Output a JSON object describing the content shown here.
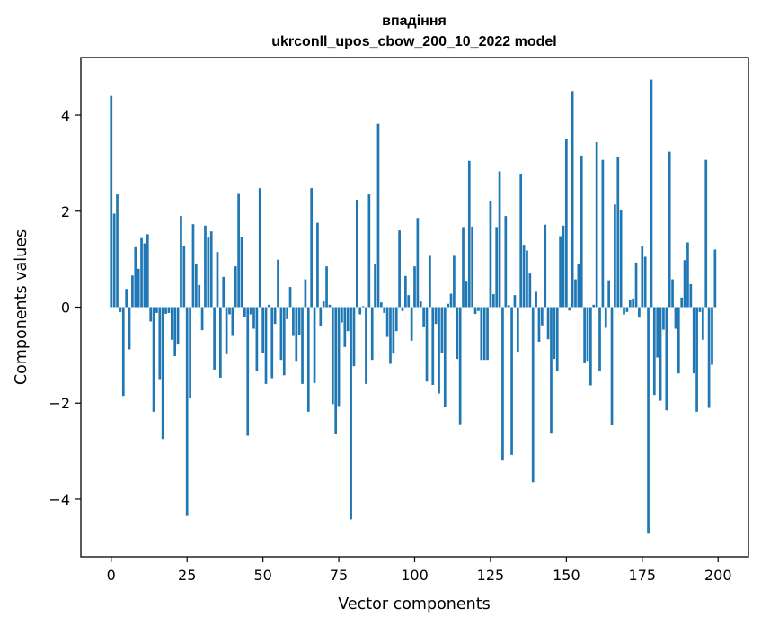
{
  "chart_data": {
    "type": "bar",
    "title": "впадіння",
    "subtitle": "ukrconll_upos_cbow_200_10_2022 model",
    "xlabel": "Vector components",
    "ylabel": "Components values",
    "xlim": [
      -10,
      210
    ],
    "ylim": [
      -5.2,
      5.2
    ],
    "xticks": [
      0,
      25,
      50,
      75,
      100,
      125,
      150,
      175,
      200
    ],
    "xtick_labels": [
      "0",
      "25",
      "50",
      "75",
      "100",
      "125",
      "150",
      "175",
      "200"
    ],
    "yticks": [
      -4,
      -2,
      0,
      2,
      4
    ],
    "ytick_labels": [
      "−4",
      "−2",
      "0",
      "2",
      "4"
    ],
    "grid": false,
    "color": "#1f77b4",
    "x": [
      0,
      1,
      2,
      3,
      4,
      5,
      6,
      7,
      8,
      9,
      10,
      11,
      12,
      13,
      14,
      15,
      16,
      17,
      18,
      19,
      20,
      21,
      22,
      23,
      24,
      25,
      26,
      27,
      28,
      29,
      30,
      31,
      32,
      33,
      34,
      35,
      36,
      37,
      38,
      39,
      40,
      41,
      42,
      43,
      44,
      45,
      46,
      47,
      48,
      49,
      50,
      51,
      52,
      53,
      54,
      55,
      56,
      57,
      58,
      59,
      60,
      61,
      62,
      63,
      64,
      65,
      66,
      67,
      68,
      69,
      70,
      71,
      72,
      73,
      74,
      75,
      76,
      77,
      78,
      79,
      80,
      81,
      82,
      83,
      84,
      85,
      86,
      87,
      88,
      89,
      90,
      91,
      92,
      93,
      94,
      95,
      96,
      97,
      98,
      99,
      100,
      101,
      102,
      103,
      104,
      105,
      106,
      107,
      108,
      109,
      110,
      111,
      112,
      113,
      114,
      115,
      116,
      117,
      118,
      119,
      120,
      121,
      122,
      123,
      124,
      125,
      126,
      127,
      128,
      129,
      130,
      131,
      132,
      133,
      134,
      135,
      136,
      137,
      138,
      139,
      140,
      141,
      142,
      143,
      144,
      145,
      146,
      147,
      148,
      149,
      150,
      151,
      152,
      153,
      154,
      155,
      156,
      157,
      158,
      159,
      160,
      161,
      162,
      163,
      164,
      165,
      166,
      167,
      168,
      169,
      170,
      171,
      172,
      173,
      174,
      175,
      176,
      177,
      178,
      179,
      180,
      181,
      182,
      183,
      184,
      185,
      186,
      187,
      188,
      189,
      190,
      191,
      192,
      193,
      194,
      195,
      196,
      197,
      198,
      199
    ],
    "values": [
      4.4,
      1.95,
      2.35,
      -0.1,
      -1.85,
      0.38,
      -0.88,
      0.66,
      1.25,
      0.8,
      1.44,
      1.33,
      1.52,
      -0.3,
      -2.18,
      -0.12,
      -1.5,
      -2.75,
      -0.14,
      -0.12,
      -0.68,
      -1.02,
      -0.78,
      1.9,
      1.27,
      -4.35,
      -1.9,
      1.73,
      0.9,
      0.46,
      -0.48,
      1.7,
      1.45,
      1.58,
      -1.3,
      1.15,
      -1.47,
      0.63,
      -0.98,
      -0.15,
      -0.6,
      0.85,
      2.36,
      1.47,
      -0.2,
      -2.68,
      -0.15,
      -0.45,
      -1.33,
      2.48,
      -0.95,
      -1.6,
      0.05,
      -1.48,
      -0.35,
      0.99,
      -1.1,
      -1.42,
      -0.25,
      0.42,
      -0.6,
      -1.12,
      -0.58,
      -1.6,
      0.58,
      -2.18,
      2.48,
      -1.58,
      1.76,
      -0.4,
      0.12,
      0.85,
      0.05,
      -2.02,
      -2.65,
      -2.06,
      -0.32,
      -0.83,
      -0.5,
      -4.42,
      -1.23,
      2.24,
      -0.15,
      0.02,
      -1.6,
      2.35,
      -1.1,
      0.9,
      3.82,
      0.1,
      -0.12,
      -0.62,
      -1.18,
      -0.97,
      -0.5,
      1.6,
      -0.08,
      0.65,
      0.25,
      -0.7,
      0.85,
      1.86,
      0.12,
      -0.42,
      -1.55,
      1.07,
      -1.62,
      -0.35,
      -1.8,
      -0.95,
      -2.08,
      0.07,
      0.28,
      1.07,
      -1.08,
      -2.44,
      1.67,
      0.55,
      3.05,
      1.68,
      -0.14,
      -0.08,
      -1.1,
      -1.1,
      -1.1,
      2.22,
      0.27,
      1.67,
      2.83,
      -3.18,
      1.9,
      0.04,
      -3.08,
      0.25,
      -0.93,
      2.78,
      1.3,
      1.18,
      0.7,
      -3.65,
      0.32,
      -0.72,
      -0.38,
      1.72,
      -0.67,
      -2.62,
      -1.08,
      -1.33,
      1.48,
      1.7,
      3.5,
      -0.07,
      4.5,
      0.58,
      0.9,
      3.16,
      -1.17,
      -1.12,
      -1.63,
      0.05,
      3.44,
      -1.33,
      3.07,
      -0.43,
      0.56,
      -2.45,
      2.14,
      3.12,
      2.02,
      -0.15,
      -0.1,
      0.16,
      0.18,
      0.93,
      -0.22,
      1.27,
      1.05,
      -4.72,
      4.74,
      -1.83,
      -1.05,
      -1.95,
      -0.47,
      -2.15,
      3.24,
      0.58,
      -0.45,
      -1.38,
      0.2,
      0.98,
      1.35,
      0.48,
      -1.38,
      -2.18,
      -0.1,
      -0.68,
      3.07,
      -2.1,
      -1.2,
      1.2
    ]
  }
}
